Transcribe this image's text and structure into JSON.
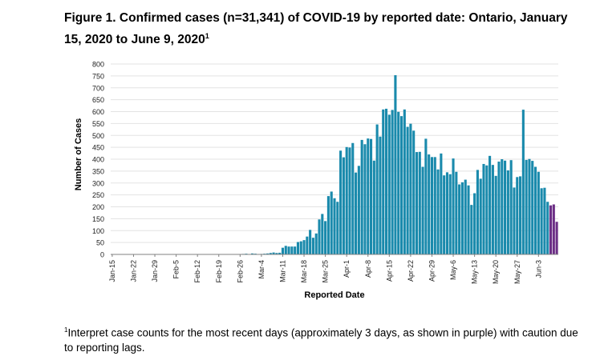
{
  "figure": {
    "title": "Figure 1. Confirmed cases (n=31,341) of COVID-19 by reported date: Ontario, January 15, 2020 to June 9, 2020",
    "title_sup": "1",
    "footnote_sup": "1",
    "footnote": "Interpret case counts for the most recent days (approximately 3 days, as shown in purple) with caution due to reporting lags."
  },
  "chart_data": {
    "type": "bar",
    "title": "Figure 1. Confirmed cases (n=31,341) of COVID-19 by reported date: Ontario, January 15, 2020 to June 9, 2020",
    "xlabel": "Reported Date",
    "ylabel": "Number of Cases",
    "ylim": [
      0,
      800
    ],
    "yticks": [
      0,
      50,
      100,
      150,
      200,
      250,
      300,
      350,
      400,
      450,
      500,
      550,
      600,
      650,
      700,
      750,
      800
    ],
    "grid": true,
    "x_tick_labels": [
      "Jan-15",
      "Jan-22",
      "Jan-29",
      "Feb-5",
      "Feb-12",
      "Feb-19",
      "Feb-26",
      "Mar-4",
      "Mar-11",
      "Mar-18",
      "Mar-25",
      "Apr-1",
      "Apr-8",
      "Apr-15",
      "Apr-22",
      "Apr-29",
      "May-6",
      "May-13",
      "May-20",
      "May-27",
      "Jun-3"
    ],
    "x_start": "2020-01-15",
    "x_end": "2020-06-09",
    "colors": {
      "bar": "#1a8aac",
      "bar_recent": "#6c2f86"
    },
    "recent_lag_days": 3,
    "values": [
      0,
      0,
      0,
      0,
      0,
      0,
      0,
      0,
      0,
      1,
      0,
      0,
      1,
      0,
      0,
      1,
      0,
      0,
      0,
      0,
      1,
      0,
      0,
      0,
      0,
      1,
      0,
      0,
      0,
      0,
      0,
      0,
      0,
      0,
      0,
      0,
      0,
      0,
      0,
      0,
      0,
      0,
      1,
      2,
      3,
      1,
      4,
      3,
      1,
      2,
      3,
      4,
      6,
      8,
      6,
      7,
      28,
      36,
      33,
      33,
      33,
      52,
      55,
      60,
      75,
      103,
      70,
      88,
      147,
      170,
      140,
      245,
      264,
      236,
      221,
      436,
      408,
      451,
      449,
      468,
      344,
      372,
      481,
      463,
      487,
      485,
      394,
      546,
      495,
      609,
      612,
      587,
      607,
      753,
      599,
      581,
      609,
      536,
      549,
      520,
      430,
      431,
      368,
      486,
      420,
      409,
      409,
      357,
      424,
      332,
      345,
      337,
      403,
      347,
      294,
      303,
      314,
      290,
      208,
      257,
      355,
      318,
      380,
      374,
      414,
      376,
      330,
      390,
      400,
      394,
      353,
      396,
      281,
      325,
      328,
      608,
      397,
      401,
      393,
      368,
      347,
      278,
      280,
      221,
      206,
      210,
      137
    ]
  }
}
